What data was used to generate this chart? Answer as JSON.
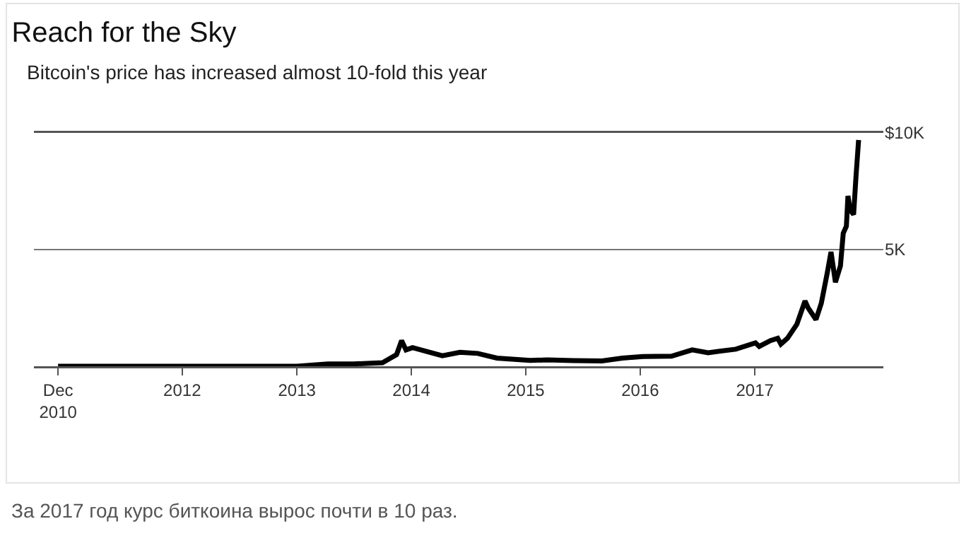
{
  "chart_data": {
    "type": "line",
    "title": "Reach for the Sky",
    "subtitle": "Bitcoin's price has increased almost 10-fold this year",
    "annotations": [
      "За 2017 год курс биткоина вырос почти в 10 раз."
    ],
    "x": [
      "2010-12-01",
      "2011-06-10",
      "2011-12-01",
      "2012-06-01",
      "2013-01-01",
      "2013-04-10",
      "2013-07-01",
      "2013-10-01",
      "2013-11-15",
      "2013-12-01",
      "2013-12-15",
      "2014-01-05",
      "2014-02-15",
      "2014-04-10",
      "2014-06-05",
      "2014-08-01",
      "2014-10-01",
      "2015-01-15",
      "2015-03-10",
      "2015-06-01",
      "2015-09-01",
      "2015-11-05",
      "2016-01-10",
      "2016-04-10",
      "2016-06-15",
      "2016-08-05",
      "2016-11-01",
      "2017-01-03",
      "2017-01-15",
      "2017-02-20",
      "2017-03-15",
      "2017-03-25",
      "2017-04-15",
      "2017-05-15",
      "2017-06-10",
      "2017-06-20",
      "2017-07-15",
      "2017-08-01",
      "2017-08-20",
      "2017-09-01",
      "2017-09-15",
      "2017-10-01",
      "2017-10-10",
      "2017-10-20",
      "2017-10-25",
      "2017-11-01",
      "2017-11-12",
      "2017-11-20",
      "2017-11-28"
    ],
    "series": [
      {
        "color": "#000000",
        "values": [
          0,
          0,
          0,
          0,
          0,
          100,
          100,
          150,
          500,
          1100,
          700,
          800,
          650,
          450,
          600,
          550,
          350,
          250,
          270,
          240,
          230,
          350,
          420,
          430,
          700,
          580,
          730,
          1000,
          850,
          1100,
          1200,
          950,
          1200,
          1800,
          2800,
          2500,
          2000,
          2700,
          4000,
          4900,
          3600,
          4300,
          5700,
          6000,
          7300,
          6700,
          6500,
          8200,
          9700
        ]
      }
    ],
    "xlim": [
      "2010-09-15",
      "2018-02-15"
    ],
    "xticks": [
      {
        "value": "2010-12-01",
        "label": "Dec\n2010"
      },
      {
        "value": "2012-01-01",
        "label": "2012"
      },
      {
        "value": "2013-01-01",
        "label": "2013"
      },
      {
        "value": "2014-01-01",
        "label": "2014"
      },
      {
        "value": "2015-01-01",
        "label": "2015"
      },
      {
        "value": "2016-01-01",
        "label": "2016"
      },
      {
        "value": "2017-01-01",
        "label": "2017"
      }
    ],
    "ylim": [
      0,
      10000
    ],
    "yticks": [
      {
        "value": 5000,
        "label": "5K"
      },
      {
        "value": 10000,
        "label": "$10K"
      }
    ],
    "grid": "y",
    "legend": false,
    "marker": "none",
    "line_style": "solid"
  }
}
